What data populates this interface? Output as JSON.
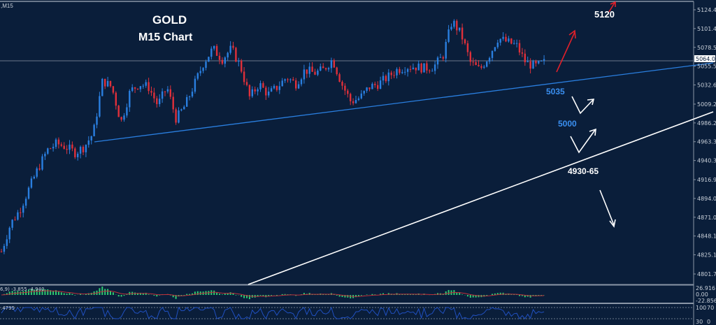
{
  "header": {
    "symbol_timeframe": ",M15"
  },
  "title": {
    "line1": "GOLD",
    "line2": "M15 Chart"
  },
  "annotations": {
    "target_up": "5120",
    "level_1": "5035",
    "level_2": "5000",
    "level_3": "4930-65"
  },
  "colors": {
    "background": "#0a1e3a",
    "bull": "#2a7fe0",
    "bear": "#e0303a",
    "support_trend": "#2a7fe0",
    "lower_trend": "#ffffff",
    "up_arrow": "#e0202a",
    "macd_hist": "#2ecc71",
    "macd_signal": "#c0303a",
    "rsi_line": "#2050c0"
  },
  "macd_panel": {
    "label": "6,9) -3.855 -4.940",
    "ticks": [
      "26.916",
      "0.00",
      "-22.856"
    ]
  },
  "rsi_panel": {
    "label": ".4795",
    "ticks": [
      "100",
      "70",
      "30",
      "0"
    ]
  },
  "chart_data": {
    "type": "candlestick",
    "title": "GOLD M15 Chart",
    "y_ticks": [
      "5124.40",
      "5101.45",
      "5078.50",
      "5055.55",
      "5032.60",
      "5009.20",
      "4986.25",
      "4963.30",
      "4940.35",
      "4916.95",
      "4894.00",
      "4871.05",
      "4848.10",
      "4825.15",
      "4801.75"
    ],
    "ylim": [
      4801.75,
      5124.4
    ],
    "current_price": "5064.08",
    "approx_close_path": [
      4829,
      4863,
      4880,
      4906,
      4931,
      4953,
      4961,
      4957,
      4950,
      4957,
      4974,
      5038,
      5030,
      4987,
      5025,
      5034,
      5030,
      5008,
      5030,
      4991,
      5008,
      5034,
      5060,
      5077,
      5064,
      5077,
      5055,
      5017,
      5034,
      5021,
      5030,
      5042,
      5034,
      5051,
      5047,
      5051,
      5064,
      5034,
      5012,
      5017,
      5030,
      5034,
      5042,
      5051,
      5055,
      5055,
      5053,
      5055,
      5068,
      5111,
      5094,
      5060,
      5051,
      5068,
      5090,
      5085,
      5081,
      5060,
      5055,
      5060
    ],
    "grid": false
  }
}
